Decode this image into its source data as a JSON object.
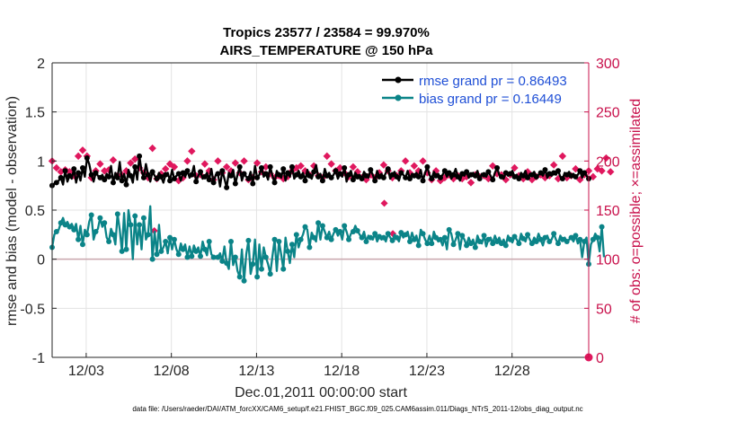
{
  "chart_data": {
    "type": "line",
    "title": "Tropics 23577 / 23584 = 99.970%",
    "subtitle": "AIRS_TEMPERATURE @ 150 hPa",
    "xlabel": "Dec.01,2011 00:00:00 start",
    "ylabel": "rmse and bias (model - observation)",
    "ylabel_right": "# of obs: o=possible; ×=assimilated",
    "xlim": [
      1,
      32.5
    ],
    "ylim": [
      -1,
      2
    ],
    "ylim_right": [
      0,
      300
    ],
    "x_ticks": [
      3,
      8,
      13,
      18,
      23,
      28
    ],
    "x_tick_labels": [
      "12/03",
      "12/08",
      "12/13",
      "12/18",
      "12/23",
      "12/28"
    ],
    "y_ticks": [
      -1,
      -0.5,
      0,
      0.5,
      1,
      1.5,
      2
    ],
    "y_tick_labels": [
      "-1",
      "-0.5",
      "0",
      "0.5",
      "1",
      "1.5",
      "2"
    ],
    "y_ticks_right": [
      0,
      50,
      100,
      150,
      200,
      250,
      300
    ],
    "y_tick_labels_right": [
      "0",
      "50",
      "100",
      "150",
      "200",
      "250",
      "300"
    ],
    "legend": [
      "rmse grand pr = 0.86493",
      "bias grand pr = 0.16449"
    ],
    "footer": "data file: /Users/raeder/DAI/ATM_forcXX/CAM6_setup/f.e21.FHIST_BGC.f09_025.CAM6assim.011/Diags_NTrS_2011-12/obs_diag_output.nc",
    "series": [
      {
        "name": "rmse",
        "color": "#000000",
        "values": [
          0.75,
          0.77,
          0.78,
          0.8,
          0.83,
          0.76,
          0.9,
          0.79,
          0.85,
          0.82,
          0.92,
          0.78,
          0.88,
          0.8,
          0.93,
          0.84,
          1.03,
          0.97,
          0.86,
          0.79,
          0.88,
          0.85,
          0.83,
          0.86,
          0.81,
          0.87,
          0.84,
          0.95,
          0.78,
          0.88,
          0.83,
          0.99,
          0.8,
          0.87,
          0.76,
          0.91,
          0.85,
          0.78,
          0.94,
          0.81,
          1.05,
          0.9,
          0.83,
          0.97,
          0.86,
          0.79,
          0.89,
          0.85,
          0.82,
          0.88,
          0.84,
          0.78,
          0.86,
          0.88,
          0.8,
          0.91,
          0.82,
          0.85,
          0.87,
          0.8,
          0.88,
          0.84,
          0.9,
          0.83,
          0.86,
          0.95,
          0.79,
          0.85,
          0.89,
          0.82,
          0.84,
          0.88,
          0.81,
          0.92,
          0.78,
          0.86,
          0.87,
          0.74,
          0.9,
          0.82,
          0.73,
          0.88,
          0.85,
          0.91,
          0.77,
          0.86,
          0.94,
          0.8,
          0.87,
          0.84,
          0.82,
          0.89,
          0.77,
          0.95,
          0.83,
          0.86,
          0.93,
          0.84,
          0.87,
          0.81,
          0.94,
          0.85,
          0.78,
          0.9,
          0.86,
          0.83,
          0.92,
          0.8,
          0.88,
          0.84,
          0.94,
          0.82,
          0.86,
          0.9,
          0.84,
          0.88,
          0.8,
          0.91,
          0.85,
          0.82,
          0.89,
          0.96,
          0.84,
          0.87,
          0.8,
          0.92,
          0.85,
          0.88,
          0.83,
          0.86,
          0.9,
          0.82,
          0.87,
          0.84,
          0.93,
          0.79,
          0.86,
          0.9,
          0.81,
          0.88,
          0.84,
          0.86,
          0.82,
          0.89,
          0.85,
          0.83,
          0.91,
          0.86,
          0.8,
          0.9,
          0.84,
          0.87,
          0.83,
          0.88,
          0.92,
          0.82,
          0.86,
          0.89,
          0.84,
          0.8,
          0.88,
          0.86,
          0.83,
          0.9,
          0.82,
          0.87,
          0.85,
          0.88,
          0.84,
          0.91,
          0.8,
          0.88,
          0.94,
          0.86,
          0.82,
          0.89,
          0.85,
          0.87,
          0.83,
          0.86,
          0.9,
          0.84,
          0.88,
          0.82,
          0.86,
          0.92,
          0.84,
          0.8,
          0.87,
          0.85,
          0.89,
          0.83,
          0.86,
          0.88,
          0.85,
          0.9,
          0.82,
          0.87,
          0.86,
          0.84,
          0.89,
          0.85,
          0.81,
          0.88,
          0.93,
          0.86,
          0.84,
          0.82,
          0.88,
          0.85,
          0.87,
          0.9,
          0.84,
          0.86,
          0.82,
          0.88,
          0.85,
          0.9,
          0.83,
          0.87,
          0.86,
          0.89,
          0.84,
          0.86,
          0.88,
          0.85,
          0.91,
          0.83,
          0.87,
          0.85,
          0.88,
          0.86,
          0.9,
          0.84,
          0.82,
          0.88,
          0.86,
          0.89,
          0.85,
          0.87,
          0.84,
          0.86,
          0.9,
          0.83,
          0.88,
          0.85,
          0.82
        ]
      },
      {
        "name": "bias",
        "color": "#0b8488",
        "values": [
          0.12,
          0.25,
          0.28,
          0.3,
          0.37,
          0.42,
          0.35,
          0.38,
          0.33,
          0.36,
          0.3,
          0.36,
          0.2,
          0.34,
          0.15,
          0.3,
          0.25,
          0.38,
          0.45,
          0.2,
          0.28,
          0.31,
          0.42,
          0.33,
          0.37,
          0.22,
          0.18,
          0.31,
          0.25,
          0.15,
          0.46,
          0.3,
          0.08,
          0.47,
          0.1,
          0.5,
          0.35,
          0.0,
          0.44,
          0.15,
          0.35,
          0.1,
          0.42,
          0.2,
          0.25,
          0.54,
          0.0,
          0.28,
          0.05,
          0.35,
          0.08,
          0.12,
          0.18,
          0.06,
          0.22,
          0.1,
          0.2,
          0.1,
          0.05,
          0.16,
          0.1,
          0.15,
          0.02,
          0.13,
          0.03,
          0.14,
          0.08,
          0.12,
          0.03,
          0.18,
          0.1,
          0.04,
          0.18,
          0.05,
          0.02,
          0.02,
          0.02,
          0.06,
          -0.02,
          0.13,
          -0.04,
          -0.1,
          0.18,
          -0.06,
          0.02,
          -0.12,
          -0.18,
          0.1,
          -0.22,
          0.05,
          0.19,
          -0.15,
          -0.05,
          0.2,
          -0.18,
          0.15,
          -0.1,
          0.12,
          0.02,
          -0.05,
          -0.15,
          0.03,
          0.2,
          -0.12,
          0.18,
          0.05,
          -0.1,
          0.22,
          0.08,
          -0.04,
          0.15,
          0.02,
          0.25,
          0.12,
          0.2,
          0.25,
          0.33,
          0.3,
          0.12,
          0.27,
          0.22,
          0.18,
          0.37,
          0.2,
          0.34,
          0.28,
          0.22,
          0.28,
          0.2,
          0.26,
          0.3,
          0.24,
          0.28,
          0.2,
          0.34,
          0.28,
          0.2,
          0.26,
          0.28,
          0.34,
          0.29,
          0.25,
          0.22,
          0.28,
          0.18,
          0.24,
          0.22,
          0.2,
          0.26,
          0.18,
          0.23,
          0.2,
          0.22,
          0.18,
          0.26,
          0.22,
          0.19,
          0.25,
          0.22,
          0.18,
          0.27,
          0.22,
          0.25,
          0.28,
          0.18,
          0.27,
          0.2,
          0.24,
          0.14,
          0.3,
          0.26,
          0.2,
          0.16,
          0.24,
          0.16,
          0.28,
          0.22,
          0.18,
          0.2,
          0.14,
          0.22,
          0.1,
          0.3,
          0.26,
          0.15,
          0.2,
          0.26,
          0.1,
          0.24,
          0.2,
          0.14,
          0.22,
          0.16,
          0.2,
          0.12,
          0.24,
          0.18,
          0.16,
          0.24,
          0.13,
          0.2,
          0.22,
          0.16,
          0.24,
          0.18,
          0.22,
          0.16,
          0.2,
          0.14,
          0.24,
          0.2,
          0.17,
          0.23,
          0.2,
          0.16,
          0.26,
          0.21,
          0.18,
          0.25,
          0.2,
          0.16,
          0.22,
          0.18,
          0.26,
          0.2,
          0.14,
          0.22,
          0.24,
          0.18,
          0.2,
          0.26,
          0.2,
          0.16,
          0.24,
          0.2,
          0.22,
          0.18,
          0.2,
          0.22,
          0.18,
          0.24,
          0.16,
          0.2,
          0.02,
          0.18,
          0.22,
          -0.05,
          0.15,
          0.2,
          0.26,
          0.22,
          0.08,
          0.33,
          0.02
        ]
      },
      {
        "name": "obs possible",
        "axis": "right",
        "color": "#c8104b",
        "values": []
      },
      {
        "name": "obs assimilated",
        "axis": "right",
        "color": "#e0185e",
        "values": [
          200,
          195,
          193,
          185,
          189,
          211,
          191,
          183,
          189,
          200,
          185,
          190,
          205,
          184,
          211,
          185,
          205,
          196,
          183,
          192,
          190,
          186,
          197,
          183,
          190,
          188,
          191,
          185,
          201,
          188,
          185,
          194,
          186,
          183,
          190,
          183,
          198,
          186,
          202,
          183,
          193,
          185,
          188,
          194,
          183,
          195,
          213,
          187,
          182,
          200,
          187,
          186,
          192,
          183,
          197,
          184,
          194,
          186,
          180,
          190,
          183,
          185,
          200,
          190,
          210,
          197,
          185,
          188,
          186,
          182,
          197,
          184,
          190,
          195,
          181,
          186,
          200,
          183,
          188,
          182,
          194,
          185,
          190,
          180,
          198,
          182,
          188,
          184,
          200,
          190,
          181,
          195,
          183,
          185,
          198,
          184,
          189,
          186,
          194,
          180,
          187,
          200,
          183,
          191,
          185,
          188,
          182,
          196,
          184,
          186,
          190,
          181,
          193,
          188,
          195,
          182,
          190,
          205,
          186,
          180,
          195,
          212,
          185,
          188,
          183,
          192,
          205,
          181,
          197,
          184,
          190,
          186,
          193,
          182,
          188,
          200,
          184,
          185,
          194,
          182,
          189,
          185,
          183,
          198,
          181,
          190,
          186,
          192,
          183,
          205,
          188,
          184,
          196,
          182,
          190,
          186,
          183,
          198,
          185,
          180,
          190,
          187,
          200,
          183,
          188,
          182,
          195,
          186,
          190,
          184,
          200,
          182,
          188,
          193,
          181,
          196,
          190,
          185,
          180,
          192,
          183,
          188,
          186,
          196,
          182,
          190,
          185,
          194,
          182,
          188,
          184,
          193,
          178,
          190,
          186,
          197,
          184,
          190,
          185,
          200,
          182,
          185,
          195,
          188,
          187,
          183,
          186,
          197,
          181,
          190,
          186,
          184,
          193,
          186,
          185,
          188,
          182,
          194,
          189,
          185,
          181,
          196,
          184,
          190,
          186,
          187,
          183,
          198,
          185,
          180,
          196,
          187,
          182,
          192,
          205,
          186,
          183,
          190,
          185,
          184,
          192,
          188,
          181,
          200,
          186,
          190,
          190,
          185,
          184,
          188,
          192,
          186,
          190,
          185,
          203,
          184,
          189
        ]
      }
    ]
  }
}
